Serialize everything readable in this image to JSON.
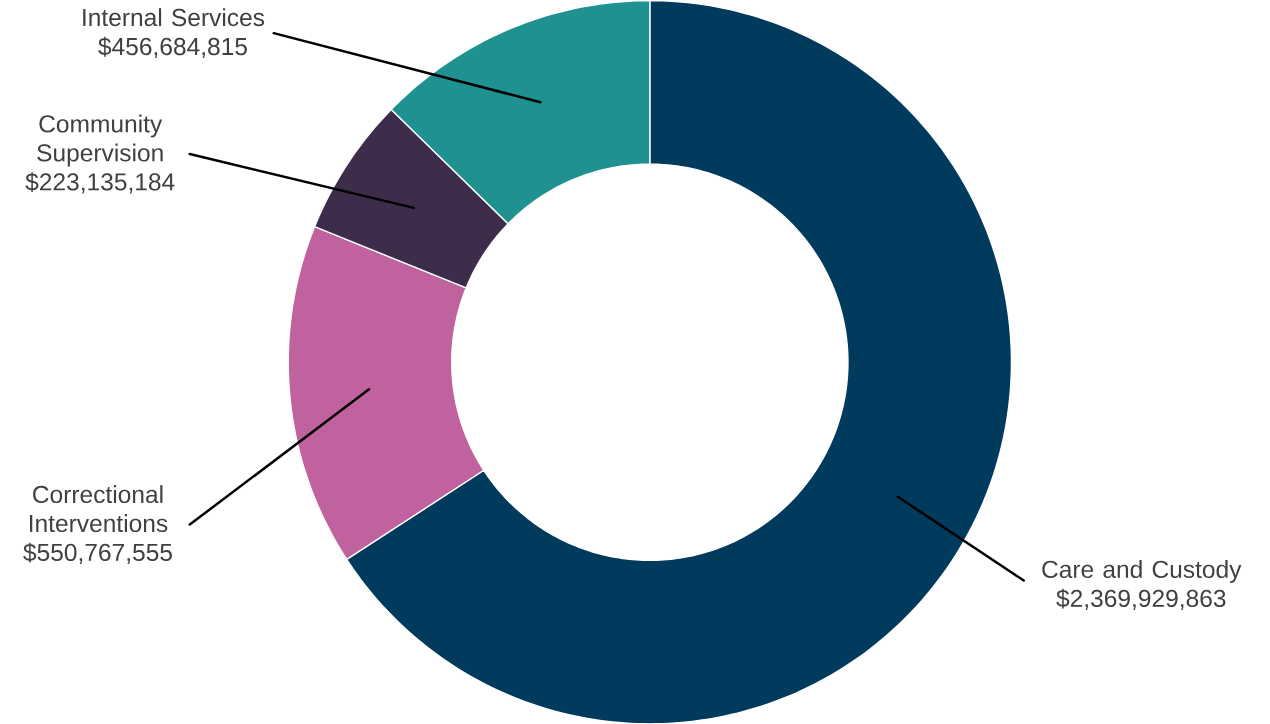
{
  "chart_data": {
    "type": "donut",
    "categories": [
      "Care and Custody",
      "Correctional Interventions",
      "Community Supervision",
      "Internal Services"
    ],
    "values": [
      2369929863,
      550767555,
      223135184,
      456684815
    ],
    "value_labels": [
      "$2,369,929,863",
      "$550,767,555",
      "$223,135,184",
      "$456,684,815"
    ],
    "colors": [
      "#003a5d",
      "#bf629d",
      "#3d2c4a",
      "#1f9190"
    ]
  }
}
